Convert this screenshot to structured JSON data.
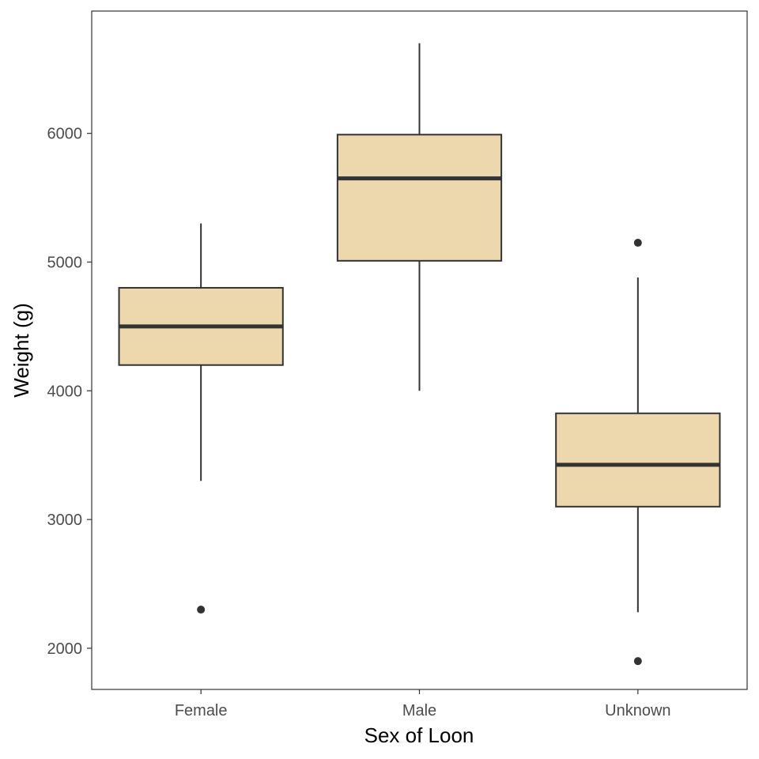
{
  "chart_data": {
    "type": "boxplot",
    "xlabel": "Sex of Loon",
    "ylabel": "Weight (g)",
    "ylim": [
      1680,
      6950
    ],
    "yticks": [
      2000,
      3000,
      4000,
      5000,
      6000
    ],
    "grid": false,
    "legend": "none",
    "categories": [
      "Female",
      "Male",
      "Unknown"
    ],
    "boxes": [
      {
        "category": "Female",
        "whisker_low": 3300,
        "q1": 4200,
        "median": 4500,
        "q3": 4800,
        "whisker_high": 5300,
        "outliers": [
          2300
        ]
      },
      {
        "category": "Male",
        "whisker_low": 4000,
        "q1": 5010,
        "median": 5650,
        "q3": 5990,
        "whisker_high": 6700,
        "outliers": []
      },
      {
        "category": "Unknown",
        "whisker_low": 2280,
        "q1": 3100,
        "median": 3425,
        "q3": 3825,
        "whisker_high": 4880,
        "outliers": [
          5150,
          1900
        ]
      }
    ],
    "colors": {
      "box_fill": "#EDD7AD",
      "box_stroke": "#333333",
      "outlier": "#333333",
      "panel_border": "#333333"
    }
  }
}
